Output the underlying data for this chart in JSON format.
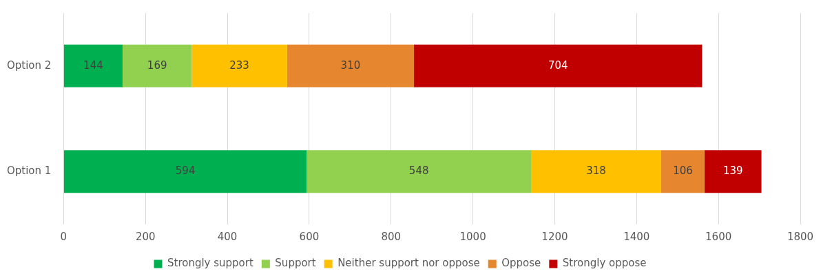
{
  "chart_data": {
    "type": "bar",
    "orientation": "horizontal",
    "stacked": true,
    "categories": [
      "Option 2",
      "Option 1"
    ],
    "series": [
      {
        "name": "Strongly support",
        "color": "#00b050",
        "values": [
          144,
          594
        ]
      },
      {
        "name": "Support",
        "color": "#92d050",
        "values": [
          169,
          548
        ]
      },
      {
        "name": "Neither support nor oppose",
        "color": "#ffc000",
        "values": [
          233,
          318
        ]
      },
      {
        "name": "Oppose",
        "color": "#e6862e",
        "values": [
          310,
          106
        ]
      },
      {
        "name": "Strongly oppose",
        "color": "#c00000",
        "values": [
          704,
          139
        ]
      }
    ],
    "xlim": [
      0,
      1800
    ],
    "xticks": [
      0,
      200,
      400,
      600,
      800,
      1000,
      1200,
      1400,
      1600,
      1800
    ],
    "grid": "x",
    "legend": "bottom",
    "data_labels": true
  }
}
